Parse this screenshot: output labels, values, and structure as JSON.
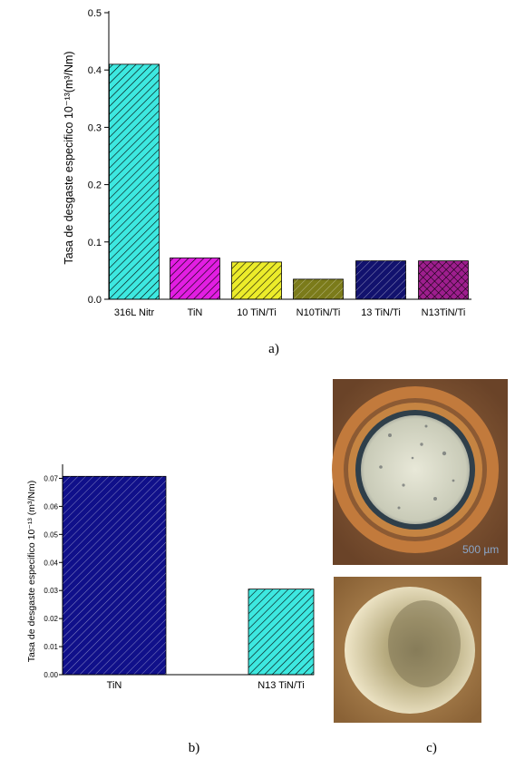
{
  "chart_data": [
    {
      "panel": "a)",
      "type": "bar",
      "ylabel": "Tasa de desgaste especifico 10⁻¹³(m³/Nm)",
      "ylim": [
        0,
        0.5
      ],
      "yticks": [
        "0.0",
        "0.1",
        "0.2",
        "0.3",
        "0.4",
        "0.5"
      ],
      "categories": [
        "316L Nitr",
        "TiN",
        "10 TiN/Ti",
        "N10TiN/Ti",
        "13 TiN/Ti",
        "N13TiN/Ti"
      ],
      "values": [
        0.41,
        0.072,
        0.065,
        0.035,
        0.067,
        0.067
      ],
      "colors": [
        "#3de8e0",
        "#e21ee2",
        "#ecec2a",
        "#7b7b1a",
        "#12126e",
        "#9e1e8e"
      ],
      "grid": false
    },
    {
      "panel": "b)",
      "type": "bar",
      "ylabel": "Tasa de desgaste especifico 10⁻¹³ (m³/Nm)",
      "ylim": [
        0,
        0.075
      ],
      "yticks": [
        "0.00",
        "0.01",
        "0.02",
        "0.03",
        "0.04",
        "0.05",
        "0.06",
        "0.07"
      ],
      "categories": [
        "TiN",
        "N13 TiN/Ti"
      ],
      "values": [
        0.0707,
        0.0305
      ],
      "colors": [
        "#10108a",
        "#3de8e0"
      ],
      "grid": false
    }
  ],
  "micrographs": {
    "panel": "c)",
    "scale_bar": "500 µm"
  }
}
